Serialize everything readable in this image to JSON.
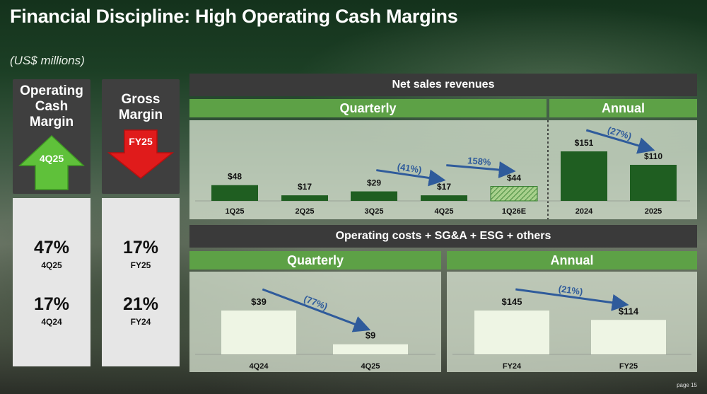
{
  "title": "Financial Discipline: High Operating Cash Margins",
  "subtitle": "(US$ millions)",
  "page_label": "page 15",
  "colors": {
    "dark_green_bar": "#1f5e21",
    "light_bar": "#eef5e4",
    "header_green": "#5da146",
    "header_dark": "#3a3a3a",
    "arrow_blue": "#2f5b9b",
    "up_arrow_green": "#5fc13a",
    "down_arrow_red": "#e01b1b"
  },
  "kpis": [
    {
      "label": "Operating Cash Margin",
      "arrow_direction": "up",
      "arrow_text": "4Q25",
      "values": [
        {
          "value": "47%",
          "period": "4Q25"
        },
        {
          "value": "17%",
          "period": "4Q24"
        }
      ]
    },
    {
      "label": "Gross Margin",
      "arrow_direction": "down",
      "arrow_text": "FY25",
      "values": [
        {
          "value": "17%",
          "period": "FY25"
        },
        {
          "value": "21%",
          "period": "FY24"
        }
      ]
    }
  ],
  "headers": {
    "net_sales": "Net sales revenues",
    "quarterly": "Quarterly",
    "annual": "Annual",
    "op_costs": "Operating costs + SG&A + ESG + others"
  },
  "chart_data": [
    {
      "type": "bar",
      "title": "Net sales revenues",
      "subtitle": "Quarterly",
      "categories": [
        "1Q25",
        "2Q25",
        "3Q25",
        "4Q25",
        "1Q26E"
      ],
      "values": [
        48,
        17,
        29,
        17,
        44
      ],
      "data_labels": [
        "$48",
        "$17",
        "$29",
        "$17",
        "$44"
      ],
      "estimate_categories": [
        "1Q26E"
      ],
      "annotations": [
        {
          "text": "(41%)",
          "from": "3Q25",
          "to": "4Q25"
        },
        {
          "text": "158%",
          "from": "4Q25",
          "to": "1Q26E"
        }
      ],
      "ylim": [
        0,
        151
      ]
    },
    {
      "type": "bar",
      "title": "Net sales revenues",
      "subtitle": "Annual",
      "categories": [
        "2024",
        "2025"
      ],
      "values": [
        151,
        110
      ],
      "data_labels": [
        "$151",
        "$110"
      ],
      "annotations": [
        {
          "text": "(27%)",
          "from": "2024",
          "to": "2025"
        }
      ],
      "ylim": [
        0,
        151
      ]
    },
    {
      "type": "bar",
      "title": "Operating costs + SG&A + ESG + others",
      "subtitle": "Quarterly",
      "categories": [
        "4Q24",
        "4Q25"
      ],
      "values": [
        39,
        9
      ],
      "data_labels": [
        "$39",
        "$9"
      ],
      "annotations": [
        {
          "text": "(77%)",
          "from": "4Q24",
          "to": "4Q25"
        }
      ],
      "ylim": [
        0,
        39
      ]
    },
    {
      "type": "bar",
      "title": "Operating costs + SG&A + ESG + others",
      "subtitle": "Annual",
      "categories": [
        "FY24",
        "FY25"
      ],
      "values": [
        145,
        114
      ],
      "data_labels": [
        "$145",
        "$114"
      ],
      "annotations": [
        {
          "text": "(21%)",
          "from": "FY24",
          "to": "FY25"
        }
      ],
      "ylim": [
        0,
        145
      ]
    }
  ]
}
